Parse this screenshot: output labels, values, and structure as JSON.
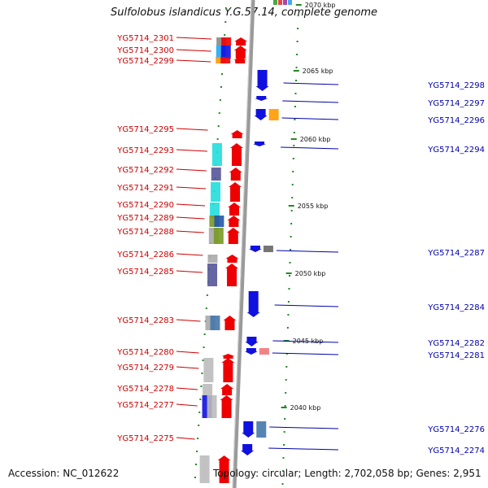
{
  "title": "Sulfolobus islandicus Y.G.57.14, complete genome",
  "accession": "Accession: NC_012622",
  "summary": "Topology: circular; Length: 2,702,058 bp; Genes: 2,951",
  "colors": {
    "forward_gene": "#ee0000",
    "reverse_gene": "#1010e0",
    "forward_label": "#cc0000",
    "reverse_label": "#0000aa",
    "backbone": "#888888",
    "tick": "#228822"
  },
  "scale_ticks": [
    {
      "label": "2070 kbp"
    },
    {
      "label": "2065 kbp"
    },
    {
      "label": "2060 kbp"
    },
    {
      "label": "2055 kbp"
    },
    {
      "label": "2050 kbp"
    },
    {
      "label": "2045 kbp"
    },
    {
      "label": "2040 kbp"
    }
  ],
  "forward_genes": [
    {
      "name": "YG5714_2301"
    },
    {
      "name": "YG5714_2300"
    },
    {
      "name": "YG5714_2299"
    },
    {
      "name": "YG5714_2295"
    },
    {
      "name": "YG5714_2293"
    },
    {
      "name": "YG5714_2292"
    },
    {
      "name": "YG5714_2291"
    },
    {
      "name": "YG5714_2290"
    },
    {
      "name": "YG5714_2289"
    },
    {
      "name": "YG5714_2288"
    },
    {
      "name": "YG5714_2286"
    },
    {
      "name": "YG5714_2285"
    },
    {
      "name": "YG5714_2283"
    },
    {
      "name": "YG5714_2280"
    },
    {
      "name": "YG5714_2279"
    },
    {
      "name": "YG5714_2278"
    },
    {
      "name": "YG5714_2277"
    },
    {
      "name": "YG5714_2275"
    }
  ],
  "reverse_genes": [
    {
      "name": "YG5714_2298"
    },
    {
      "name": "YG5714_2297"
    },
    {
      "name": "YG5714_2296"
    },
    {
      "name": "YG5714_2294"
    },
    {
      "name": "YG5714_2287"
    },
    {
      "name": "YG5714_2284"
    },
    {
      "name": "YG5714_2282"
    },
    {
      "name": "YG5714_2281"
    },
    {
      "name": "YG5714_2276"
    },
    {
      "name": "YG5714_2274"
    }
  ]
}
